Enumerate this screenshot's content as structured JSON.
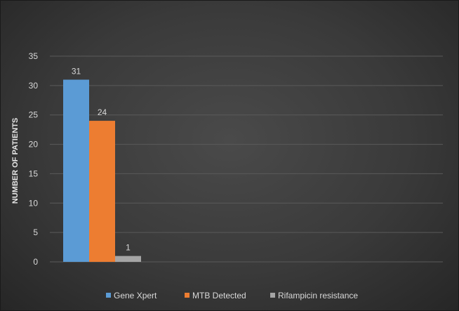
{
  "chart_data": {
    "type": "bar",
    "categories": [
      ""
    ],
    "series": [
      {
        "name": "Gene Xpert",
        "values": [
          31
        ],
        "color": "#5b9bd5"
      },
      {
        "name": "MTB Detected",
        "values": [
          24
        ],
        "color": "#ed7d31"
      },
      {
        "name": "Rifampicin resistance",
        "values": [
          1
        ],
        "color": "#a5a5a5"
      }
    ],
    "title": "",
    "xlabel": "",
    "ylabel": "NUMBER OF PATIENTS",
    "ylim": [
      0,
      35
    ],
    "yticks": [
      0,
      5,
      10,
      15,
      20,
      25,
      30,
      35
    ],
    "grid": true,
    "legend": "bottom",
    "data_labels": true,
    "background": "#3a3a3a"
  }
}
